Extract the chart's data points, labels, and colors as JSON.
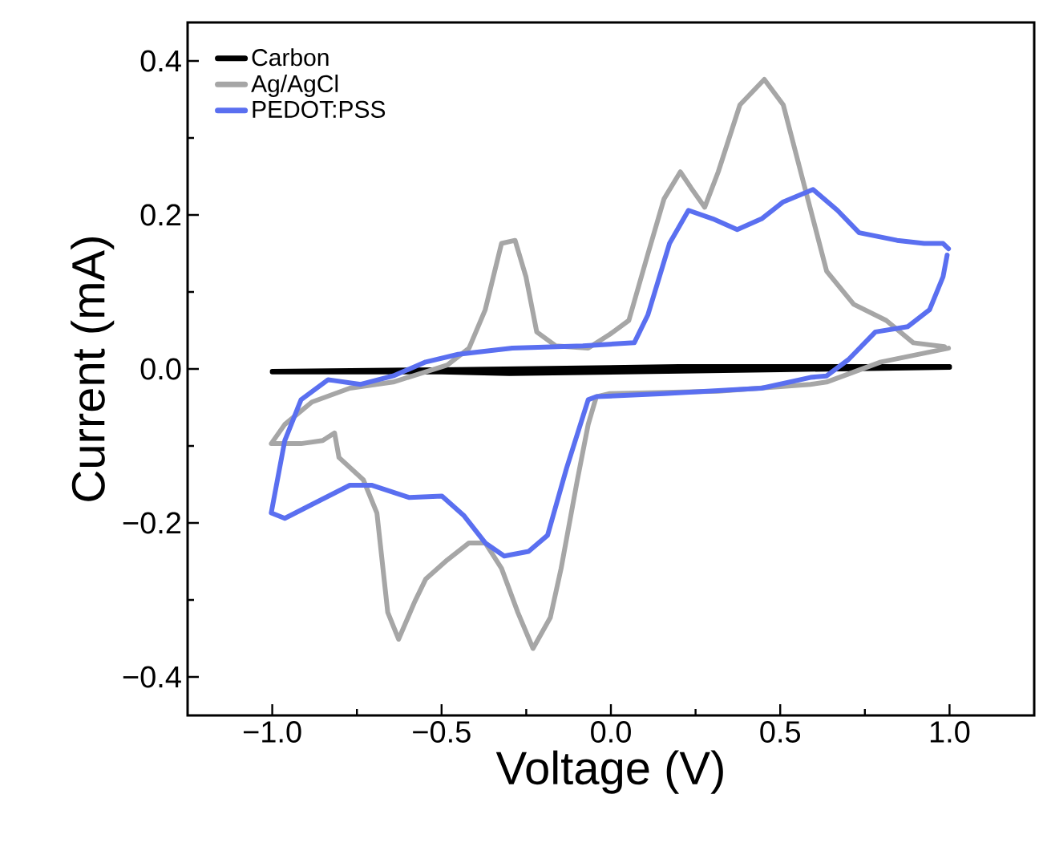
{
  "chart_data": {
    "type": "line",
    "xlabel": "Voltage (V)",
    "ylabel": "Current (mA)",
    "xlim": [
      -1.25,
      1.25
    ],
    "ylim": [
      -0.45,
      0.45
    ],
    "xticks": [
      {
        "value": -1.0,
        "label": "−1.0"
      },
      {
        "value": -0.5,
        "label": "−0.5"
      },
      {
        "value": 0.0,
        "label": "0.0"
      },
      {
        "value": 0.5,
        "label": "0.5"
      },
      {
        "value": 1.0,
        "label": "1.0"
      }
    ],
    "yticks": [
      {
        "value": -0.4,
        "label": "−0.4"
      },
      {
        "value": -0.2,
        "label": "−0.2"
      },
      {
        "value": 0.0,
        "label": "0.0"
      },
      {
        "value": 0.2,
        "label": "0.2"
      },
      {
        "value": 0.4,
        "label": "0.4"
      }
    ],
    "grid": false,
    "legend": "top left",
    "marker": "none",
    "line_style": "solid",
    "series": [
      {
        "name": "Carbon",
        "color": "#000000",
        "x": [
          -1.0,
          -0.5,
          0.2,
          1.0,
          1.0,
          0.5,
          -0.3,
          -0.5,
          -1.0
        ],
        "values": [
          -0.003,
          -0.001,
          0.003,
          0.003,
          0.002,
          -0.001,
          -0.006,
          -0.004,
          -0.004
        ]
      },
      {
        "name": "Ag/AgCl",
        "color": "#a6a6a6",
        "x": [
          0.997,
          0.797,
          0.637,
          0.589,
          0.317,
          -0.003,
          -0.043,
          -0.067,
          -0.099,
          -0.147,
          -0.179,
          -0.23,
          -0.275,
          -0.323,
          -0.371,
          -0.419,
          -0.483,
          -0.547,
          -0.579,
          -0.627,
          -0.659,
          -0.691,
          -0.731,
          -0.803,
          -0.816,
          -0.851,
          -0.915,
          -1.003,
          -0.963,
          -0.883,
          -0.771,
          -0.643,
          -0.483,
          -0.419,
          -0.371,
          -0.323,
          -0.283,
          -0.251,
          -0.219,
          -0.163,
          -0.067,
          -0.003,
          0.053,
          0.109,
          0.157,
          0.205,
          0.237,
          0.277,
          0.317,
          0.381,
          0.453,
          0.509,
          0.573,
          0.637,
          0.717,
          0.813,
          0.893,
          0.985
        ],
        "values": [
          0.027,
          0.009,
          -0.017,
          -0.02,
          -0.029,
          -0.032,
          -0.036,
          -0.072,
          -0.144,
          -0.259,
          -0.323,
          -0.363,
          -0.316,
          -0.259,
          -0.226,
          -0.226,
          -0.248,
          -0.273,
          -0.302,
          -0.351,
          -0.316,
          -0.187,
          -0.144,
          -0.115,
          -0.083,
          -0.093,
          -0.097,
          -0.097,
          -0.072,
          -0.043,
          -0.025,
          -0.017,
          0.005,
          0.027,
          0.077,
          0.163,
          0.167,
          0.12,
          0.048,
          0.03,
          0.027,
          0.045,
          0.063,
          0.149,
          0.221,
          0.256,
          0.235,
          0.21,
          0.256,
          0.343,
          0.376,
          0.343,
          0.235,
          0.127,
          0.084,
          0.063,
          0.034,
          0.029
        ]
      },
      {
        "name": "PEDOT:PSS",
        "color": "#5a6ff0",
        "x": [
          0.997,
          0.981,
          0.925,
          0.845,
          0.733,
          0.669,
          0.597,
          0.509,
          0.445,
          0.373,
          0.301,
          0.229,
          0.173,
          0.109,
          0.069,
          -0.083,
          -0.291,
          -0.451,
          -0.547,
          -0.643,
          -0.739,
          -0.819,
          -0.835,
          -0.915,
          -0.963,
          -1.003,
          -0.963,
          -0.883,
          -0.771,
          -0.707,
          -0.595,
          -0.499,
          -0.435,
          -0.371,
          -0.315,
          -0.243,
          -0.187,
          -0.131,
          -0.067,
          -0.043,
          0.157,
          0.445,
          0.589,
          0.637,
          0.701,
          0.781,
          0.877,
          0.941,
          0.981,
          0.993
        ],
        "values": [
          0.156,
          0.163,
          0.163,
          0.167,
          0.177,
          0.206,
          0.233,
          0.217,
          0.195,
          0.181,
          0.195,
          0.206,
          0.163,
          0.07,
          0.034,
          0.03,
          0.027,
          0.019,
          0.009,
          -0.009,
          -0.02,
          -0.015,
          -0.014,
          -0.04,
          -0.093,
          -0.187,
          -0.194,
          -0.176,
          -0.151,
          -0.151,
          -0.167,
          -0.165,
          -0.19,
          -0.226,
          -0.243,
          -0.237,
          -0.216,
          -0.129,
          -0.04,
          -0.036,
          -0.032,
          -0.025,
          -0.011,
          -0.009,
          0.012,
          0.048,
          0.055,
          0.077,
          0.12,
          0.148
        ]
      }
    ]
  }
}
